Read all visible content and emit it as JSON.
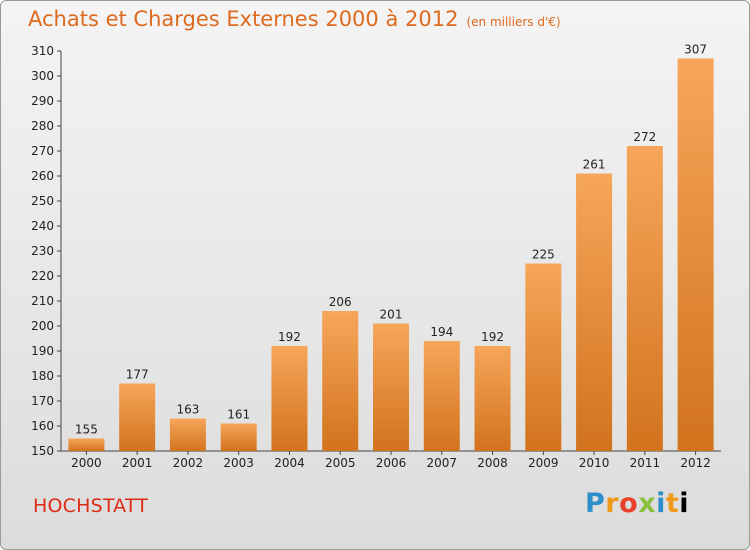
{
  "header": {
    "title": "Achats et Charges Externes 2000 à 2012",
    "subtitle": "(en milliers d'€)"
  },
  "footer": {
    "commune": "HOCHSTATT",
    "logo_letters": [
      "P",
      "r",
      "o",
      "x",
      "i",
      "t",
      "i"
    ]
  },
  "chart_data": {
    "type": "bar",
    "title": "Achats et Charges Externes 2000 à 2012",
    "subtitle": "(en milliers d'€)",
    "xlabel": "",
    "ylabel": "",
    "categories": [
      "2000",
      "2001",
      "2002",
      "2003",
      "2004",
      "2005",
      "2006",
      "2007",
      "2008",
      "2009",
      "2010",
      "2011",
      "2012"
    ],
    "values": [
      155,
      177,
      163,
      161,
      192,
      206,
      201,
      194,
      192,
      225,
      261,
      272,
      307
    ],
    "ylim": [
      150,
      310
    ],
    "yticks": [
      150,
      160,
      170,
      180,
      190,
      200,
      210,
      220,
      230,
      240,
      250,
      260,
      270,
      280,
      290,
      300,
      310
    ],
    "grid": false,
    "colors": {
      "bar_top": "#f6a65a",
      "bar_bottom": "#d2731d",
      "axis": "#444444"
    }
  }
}
